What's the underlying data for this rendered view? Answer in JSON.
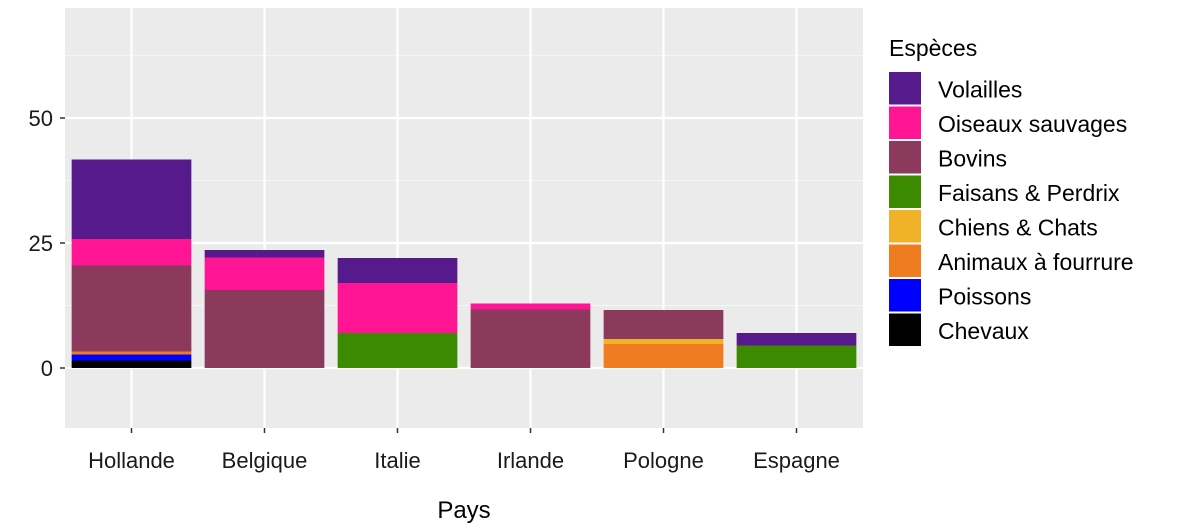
{
  "chart_data": {
    "type": "bar",
    "stacked": true,
    "xlabel": "Pays",
    "ylabel": "",
    "ylim": [
      -12,
      72
    ],
    "yticks": [
      0,
      25,
      50
    ],
    "grid": true,
    "panel_background": "#ebebeb",
    "legend": {
      "title": "Espèces",
      "position": "right"
    },
    "categories": [
      "Hollande",
      "Belgique",
      "Italie",
      "Irlande",
      "Pologne",
      "Espagne"
    ],
    "series": [
      {
        "name": "Chevaux",
        "color": "#000000",
        "values": [
          1.5,
          0,
          0,
          0,
          0,
          0
        ]
      },
      {
        "name": "Poissons",
        "color": "#0000ff",
        "values": [
          1.2,
          0,
          0,
          0,
          0,
          0
        ]
      },
      {
        "name": "Animaux à fourrure",
        "color": "#f07c22",
        "values": [
          0.6,
          0,
          0,
          0,
          4.8,
          0
        ]
      },
      {
        "name": "Chiens & Chats",
        "color": "#f0b229",
        "values": [
          0,
          0,
          0,
          0,
          1.0,
          0
        ]
      },
      {
        "name": "Faisans & Perdrix",
        "color": "#3c8a00",
        "values": [
          0,
          0,
          7,
          0,
          0,
          4.5
        ]
      },
      {
        "name": "Bovins",
        "color": "#8b3a5e",
        "values": [
          17.2,
          15.6,
          0,
          11.7,
          5.8,
          0
        ]
      },
      {
        "name": "Oiseaux sauvages",
        "color": "#ff1493",
        "values": [
          5.3,
          6.5,
          10,
          1.2,
          0,
          0
        ]
      },
      {
        "name": "Volailles",
        "color": "#561a8c",
        "values": [
          15.9,
          1.5,
          5.0,
          0,
          0,
          2.5
        ]
      }
    ],
    "legend_order": [
      "Volailles",
      "Oiseaux sauvages",
      "Bovins",
      "Faisans & Perdrix",
      "Chiens & Chats",
      "Animaux à fourrure",
      "Poissons",
      "Chevaux"
    ]
  }
}
